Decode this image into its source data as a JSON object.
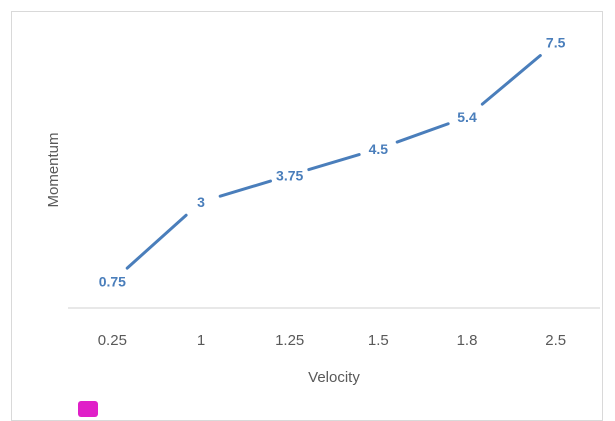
{
  "chart_data": {
    "type": "line",
    "categories": [
      "0.25",
      "1",
      "1.25",
      "1.5",
      "1.8",
      "2.5"
    ],
    "series": [
      {
        "values": [
          0.75,
          3,
          3.75,
          4.5,
          5.4,
          7.5
        ],
        "data_labels": [
          "0.75",
          "3",
          "3.75",
          "4.5",
          "5.4",
          "7.5"
        ]
      }
    ],
    "title": "",
    "xlabel": "Velocity",
    "ylabel": "Momentum",
    "ylim": [
      0,
      8
    ],
    "grid": false,
    "line_color": "#4a7ebb",
    "label_color": "#4a7ebb",
    "legend_swatch_color": "#e020c8"
  }
}
